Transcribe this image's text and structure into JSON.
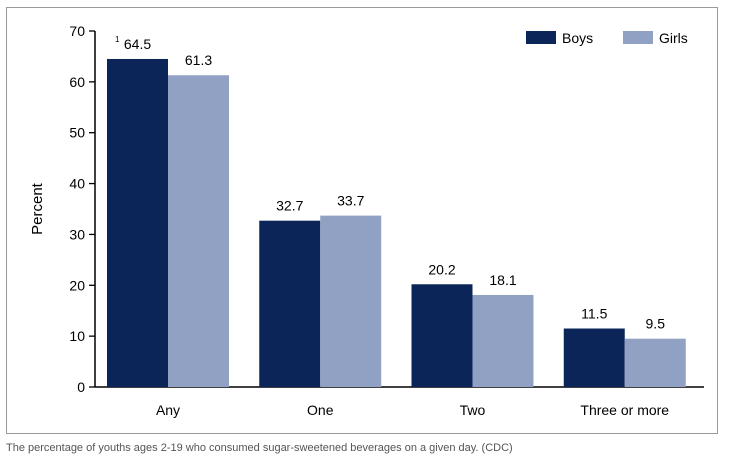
{
  "caption": "The percentage of youths ages 2-19 who consumed sugar-sweetened beverages on a given day. (CDC)",
  "colors": {
    "boys": "#0b2559",
    "girls": "#91a1c3",
    "axis": "#000000"
  },
  "chart_data": {
    "type": "bar",
    "title": "",
    "xlabel": "",
    "ylabel": "Percent",
    "ylim": [
      0,
      70
    ],
    "yticks": [
      0,
      10,
      20,
      30,
      40,
      50,
      60,
      70
    ],
    "grid": false,
    "legend_position": "top-right",
    "categories": [
      "Any",
      "One",
      "Two",
      "Three or more"
    ],
    "series": [
      {
        "name": "Boys",
        "values": [
          64.5,
          32.7,
          20.2,
          11.5
        ],
        "labels": [
          "64.5",
          "32.7",
          "20.2",
          "11.5"
        ]
      },
      {
        "name": "Girls",
        "values": [
          61.3,
          33.7,
          18.1,
          9.5
        ],
        "labels": [
          "61.3",
          "33.7",
          "18.1",
          "9.5"
        ]
      }
    ],
    "annotations": [
      {
        "series": 0,
        "index": 0,
        "text": "1"
      }
    ]
  }
}
